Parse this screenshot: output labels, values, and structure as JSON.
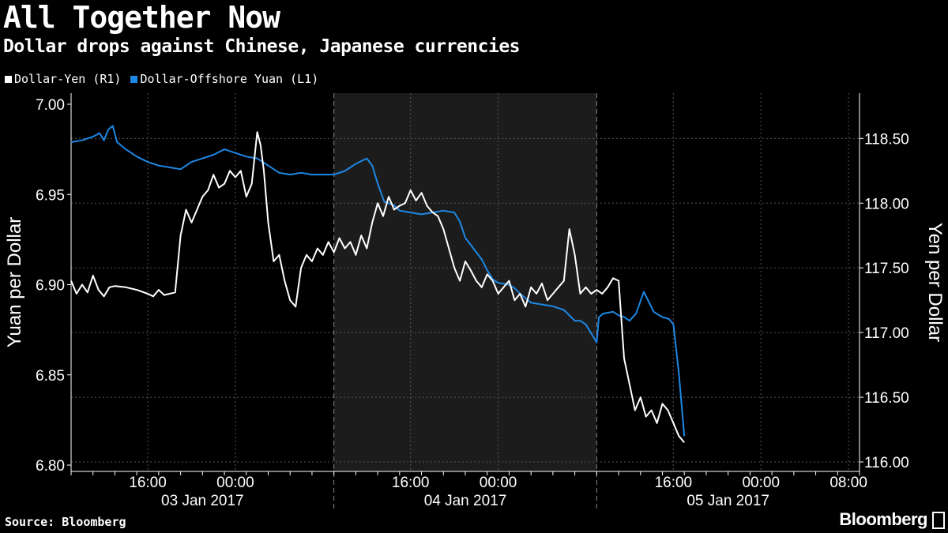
{
  "title": "All Together Now",
  "subtitle": "Dollar drops against Chinese, Japanese currencies",
  "source": "Source: Bloomberg",
  "brand": "Bloomberg",
  "legend": [
    {
      "label": "Dollar-Yen (R1)",
      "color": "#ffffff"
    },
    {
      "label": "Dollar-Offshore Yuan (L1)",
      "color": "#1e88e5"
    }
  ],
  "chart_data": {
    "type": "line",
    "ylabel_left": "Yuan per Dollar",
    "ylabel_right": "Yen per Dollar",
    "x_unit": "hours from 2017-01-02 09:00",
    "xlim": [
      0,
      72
    ],
    "ylim_left": [
      6.8,
      7.0
    ],
    "ylim_right": [
      116.0,
      118.85
    ],
    "yticks_left": [
      6.8,
      6.85,
      6.9,
      6.95,
      7.0
    ],
    "ytick_labels_left": [
      "6.80",
      "6.85",
      "6.90",
      "6.95",
      "7.00"
    ],
    "yticks_right": [
      116.0,
      116.5,
      117.0,
      117.5,
      118.0,
      118.5
    ],
    "ytick_labels_right": [
      "116.00",
      "116.50",
      "117.00",
      "117.50",
      "118.00",
      "118.50"
    ],
    "xtick_labels": [
      {
        "x": 7,
        "label": "16:00"
      },
      {
        "x": 15,
        "label": "00:00"
      },
      {
        "x": 31,
        "label": "16:00"
      },
      {
        "x": 39,
        "label": "00:00"
      },
      {
        "x": 55,
        "label": "16:00"
      },
      {
        "x": 63,
        "label": "00:00"
      },
      {
        "x": 71,
        "label": "08:00"
      }
    ],
    "date_labels": [
      {
        "x": 12,
        "label": "03 Jan 2017"
      },
      {
        "x": 36,
        "label": "04 Jan 2017"
      },
      {
        "x": 60,
        "label": "05 Jan 2017"
      }
    ],
    "day_dividers": [
      24,
      48
    ],
    "shaded_region": [
      24,
      48
    ],
    "series": [
      {
        "name": "Dollar-Offshore Yuan (L1)",
        "axis": "left",
        "color": "#1e88e5",
        "points": [
          [
            0,
            6.979
          ],
          [
            1,
            6.98
          ],
          [
            2,
            6.982
          ],
          [
            2.6,
            6.984
          ],
          [
            3,
            6.98
          ],
          [
            3.4,
            6.986
          ],
          [
            3.8,
            6.988
          ],
          [
            4.2,
            6.979
          ],
          [
            5,
            6.975
          ],
          [
            6,
            6.971
          ],
          [
            7,
            6.968
          ],
          [
            8,
            6.966
          ],
          [
            9,
            6.965
          ],
          [
            10,
            6.964
          ],
          [
            11,
            6.968
          ],
          [
            12,
            6.97
          ],
          [
            13,
            6.972
          ],
          [
            14,
            6.975
          ],
          [
            15,
            6.973
          ],
          [
            16,
            6.971
          ],
          [
            17,
            6.97
          ],
          [
            18,
            6.966
          ],
          [
            19,
            6.962
          ],
          [
            20,
            6.961
          ],
          [
            21,
            6.962
          ],
          [
            22,
            6.961
          ],
          [
            23,
            6.961
          ],
          [
            24,
            6.961
          ],
          [
            25,
            6.963
          ],
          [
            26,
            6.967
          ],
          [
            27,
            6.97
          ],
          [
            27.5,
            6.966
          ],
          [
            28,
            6.956
          ],
          [
            28.6,
            6.946
          ],
          [
            29.5,
            6.944
          ],
          [
            30,
            6.941
          ],
          [
            31,
            6.94
          ],
          [
            32,
            6.939
          ],
          [
            33,
            6.94
          ],
          [
            34,
            6.941
          ],
          [
            35,
            6.94
          ],
          [
            35.5,
            6.935
          ],
          [
            36,
            6.926
          ],
          [
            37,
            6.918
          ],
          [
            37.5,
            6.914
          ],
          [
            38,
            6.908
          ],
          [
            38.5,
            6.903
          ],
          [
            39,
            6.901
          ],
          [
            40,
            6.9
          ],
          [
            40.5,
            6.898
          ],
          [
            41,
            6.895
          ],
          [
            42,
            6.89
          ],
          [
            43,
            6.889
          ],
          [
            44,
            6.888
          ],
          [
            45,
            6.886
          ],
          [
            46,
            6.88
          ],
          [
            46.5,
            6.88
          ],
          [
            47,
            6.878
          ],
          [
            48,
            6.868
          ],
          [
            48.2,
            6.882
          ],
          [
            48.6,
            6.884
          ],
          [
            49.5,
            6.885
          ],
          [
            50,
            6.883
          ],
          [
            50.5,
            6.882
          ],
          [
            51,
            6.88
          ],
          [
            51.6,
            6.884
          ],
          [
            52.3,
            6.896
          ],
          [
            52.8,
            6.89
          ],
          [
            53.2,
            6.885
          ],
          [
            54,
            6.882
          ],
          [
            54.6,
            6.881
          ],
          [
            55,
            6.878
          ],
          [
            55.5,
            6.851
          ],
          [
            56,
            6.816
          ]
        ]
      },
      {
        "name": "Dollar-Yen (R1)",
        "axis": "right",
        "color": "#ffffff",
        "points": [
          [
            0,
            117.4
          ],
          [
            0.5,
            117.3
          ],
          [
            1,
            117.37
          ],
          [
            1.5,
            117.31
          ],
          [
            2,
            117.44
          ],
          [
            2.5,
            117.33
          ],
          [
            3,
            117.28
          ],
          [
            3.5,
            117.35
          ],
          [
            4,
            117.36
          ],
          [
            5,
            117.35
          ],
          [
            6,
            117.33
          ],
          [
            7,
            117.3
          ],
          [
            7.5,
            117.28
          ],
          [
            8,
            117.33
          ],
          [
            8.5,
            117.29
          ],
          [
            9,
            117.3
          ],
          [
            9.5,
            117.31
          ],
          [
            10,
            117.75
          ],
          [
            10.5,
            117.95
          ],
          [
            11,
            117.85
          ],
          [
            11.5,
            117.95
          ],
          [
            12,
            118.05
          ],
          [
            12.5,
            118.1
          ],
          [
            13,
            118.22
          ],
          [
            13.5,
            118.12
          ],
          [
            14,
            118.15
          ],
          [
            14.5,
            118.25
          ],
          [
            15,
            118.2
          ],
          [
            15.5,
            118.25
          ],
          [
            16,
            118.05
          ],
          [
            16.5,
            118.15
          ],
          [
            17,
            118.55
          ],
          [
            17.3,
            118.45
          ],
          [
            17.6,
            118.25
          ],
          [
            18,
            117.85
          ],
          [
            18.5,
            117.55
          ],
          [
            19,
            117.6
          ],
          [
            19.5,
            117.4
          ],
          [
            20,
            117.25
          ],
          [
            20.5,
            117.2
          ],
          [
            21,
            117.5
          ],
          [
            21.5,
            117.6
          ],
          [
            22,
            117.55
          ],
          [
            22.5,
            117.65
          ],
          [
            23,
            117.6
          ],
          [
            23.5,
            117.7
          ],
          [
            24,
            117.62
          ],
          [
            24.5,
            117.73
          ],
          [
            25,
            117.65
          ],
          [
            25.5,
            117.7
          ],
          [
            26,
            117.6
          ],
          [
            26.5,
            117.75
          ],
          [
            27,
            117.65
          ],
          [
            27.5,
            117.85
          ],
          [
            28,
            118.0
          ],
          [
            28.5,
            117.9
          ],
          [
            29,
            118.05
          ],
          [
            29.5,
            117.95
          ],
          [
            30,
            117.98
          ],
          [
            30.5,
            118.0
          ],
          [
            31,
            118.1
          ],
          [
            31.5,
            118.02
          ],
          [
            32,
            118.08
          ],
          [
            32.5,
            117.98
          ],
          [
            33,
            117.93
          ],
          [
            33.5,
            117.9
          ],
          [
            34,
            117.8
          ],
          [
            34.5,
            117.65
          ],
          [
            35,
            117.5
          ],
          [
            35.5,
            117.4
          ],
          [
            36,
            117.55
          ],
          [
            36.5,
            117.48
          ],
          [
            37,
            117.4
          ],
          [
            37.5,
            117.35
          ],
          [
            38,
            117.45
          ],
          [
            38.5,
            117.4
          ],
          [
            39,
            117.3
          ],
          [
            39.5,
            117.35
          ],
          [
            40,
            117.4
          ],
          [
            40.5,
            117.25
          ],
          [
            41,
            117.3
          ],
          [
            41.5,
            117.2
          ],
          [
            42,
            117.35
          ],
          [
            42.5,
            117.3
          ],
          [
            43,
            117.38
          ],
          [
            43.5,
            117.25
          ],
          [
            44,
            117.3
          ],
          [
            44.5,
            117.35
          ],
          [
            45,
            117.4
          ],
          [
            45.5,
            117.8
          ],
          [
            46,
            117.6
          ],
          [
            46.5,
            117.3
          ],
          [
            47,
            117.35
          ],
          [
            47.5,
            117.3
          ],
          [
            48,
            117.33
          ],
          [
            48.5,
            117.3
          ],
          [
            49,
            117.35
          ],
          [
            49.5,
            117.42
          ],
          [
            50,
            117.4
          ],
          [
            50.5,
            116.8
          ],
          [
            51,
            116.6
          ],
          [
            51.5,
            116.4
          ],
          [
            52,
            116.5
          ],
          [
            52.5,
            116.35
          ],
          [
            53,
            116.4
          ],
          [
            53.5,
            116.3
          ],
          [
            54,
            116.45
          ],
          [
            54.5,
            116.4
          ],
          [
            55,
            116.3
          ],
          [
            55.5,
            116.2
          ],
          [
            56,
            116.15
          ]
        ]
      }
    ]
  }
}
